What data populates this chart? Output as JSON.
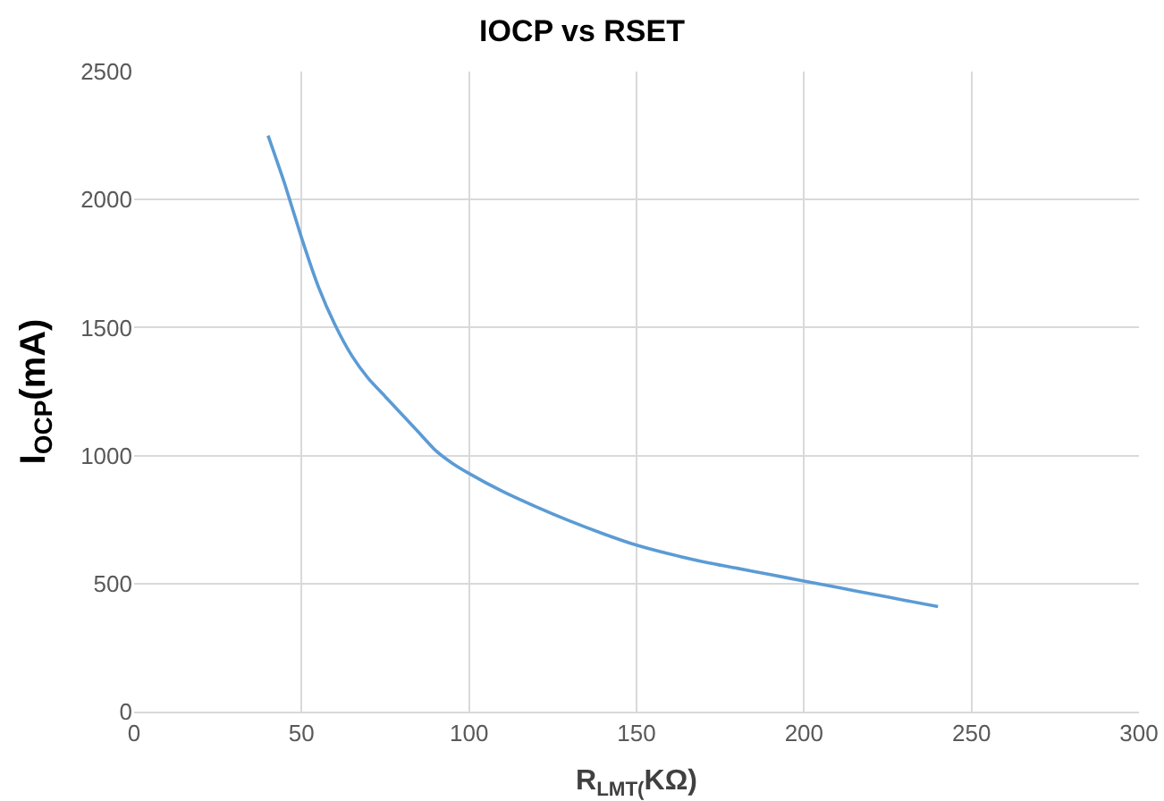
{
  "chart_data": {
    "type": "line",
    "title": "IOCP vs RSET",
    "xlabel": "R$_{LMT(}$KΩ)",
    "ylabel": "I$_{OCP}$(mA)",
    "series": [
      {
        "color": "#5b9bd5",
        "x": [
          40,
          45,
          50,
          55,
          60,
          65,
          70,
          75,
          80,
          85,
          90,
          95,
          100,
          110,
          120,
          130,
          140,
          150,
          160,
          170,
          180,
          190,
          200,
          210,
          220,
          230,
          240
        ],
        "values": [
          2250,
          2060,
          1850,
          1660,
          1510,
          1390,
          1300,
          1230,
          1160,
          1090,
          1020,
          970,
          930,
          860,
          800,
          745,
          695,
          650,
          615,
          585,
          560,
          535,
          510,
          485,
          460,
          435,
          410
        ]
      }
    ],
    "xlim": [
      0,
      300
    ],
    "xticks": [
      0,
      50,
      100,
      150,
      200,
      250,
      300
    ],
    "ylim": [
      0,
      2500
    ],
    "yticks": [
      0,
      500,
      1000,
      1500,
      2000,
      2500
    ],
    "grid": true,
    "marker": "none",
    "line_style": "solid"
  }
}
